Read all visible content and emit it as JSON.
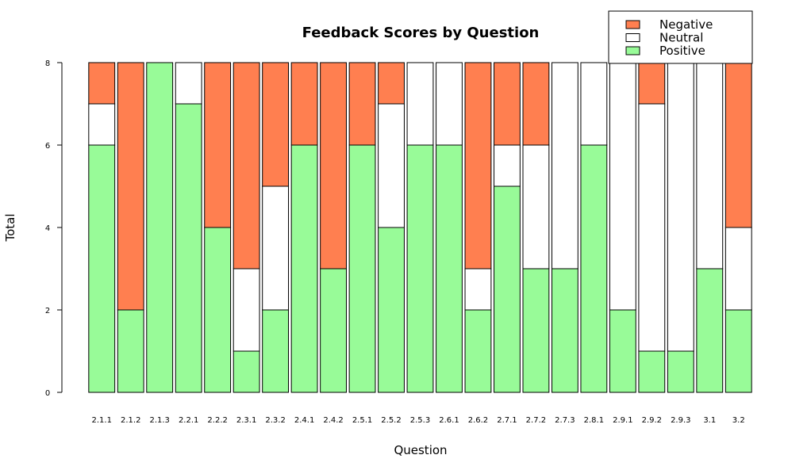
{
  "chart_data": {
    "type": "bar",
    "stacked": true,
    "title": "Feedback Scores by Question",
    "xlabel": "Question",
    "ylabel": "Total",
    "ylim": [
      0,
      8
    ],
    "yticks": [
      0,
      2,
      4,
      6,
      8
    ],
    "categories": [
      "2.1.1",
      "2.1.2",
      "2.1.3",
      "2.2.1",
      "2.2.2",
      "2.3.1",
      "2.3.2",
      "2.4.1",
      "2.4.2",
      "2.5.1",
      "2.5.2",
      "2.5.3",
      "2.6.1",
      "2.6.2",
      "2.7.1",
      "2.7.2",
      "2.7.3",
      "2.8.1",
      "2.9.1",
      "2.9.2",
      "2.9.3",
      "3.1",
      "3.2"
    ],
    "series": [
      {
        "name": "Positive",
        "color": "#98FB98",
        "values": [
          6,
          2,
          8,
          7,
          4,
          1,
          2,
          6,
          3,
          6,
          4,
          6,
          6,
          2,
          5,
          3,
          3,
          6,
          2,
          1,
          1,
          3,
          2
        ]
      },
      {
        "name": "Neutral",
        "color": "#FFFFFF",
        "values": [
          1,
          0,
          0,
          1,
          0,
          2,
          3,
          0,
          0,
          0,
          3,
          2,
          2,
          1,
          1,
          3,
          5,
          2,
          6,
          6,
          7,
          5,
          2
        ]
      },
      {
        "name": "Negative",
        "color": "#FF7F50",
        "values": [
          1,
          6,
          0,
          0,
          4,
          5,
          3,
          2,
          5,
          2,
          1,
          0,
          0,
          5,
          2,
          2,
          0,
          0,
          0,
          1,
          0,
          0,
          4
        ]
      }
    ],
    "legend": {
      "position": "top-right",
      "entries": [
        {
          "label": "Negative",
          "color": "#FF7F50"
        },
        {
          "label": "Neutral",
          "color": "#FFFFFF"
        },
        {
          "label": "Positive",
          "color": "#98FB98"
        }
      ]
    },
    "grid": false
  }
}
